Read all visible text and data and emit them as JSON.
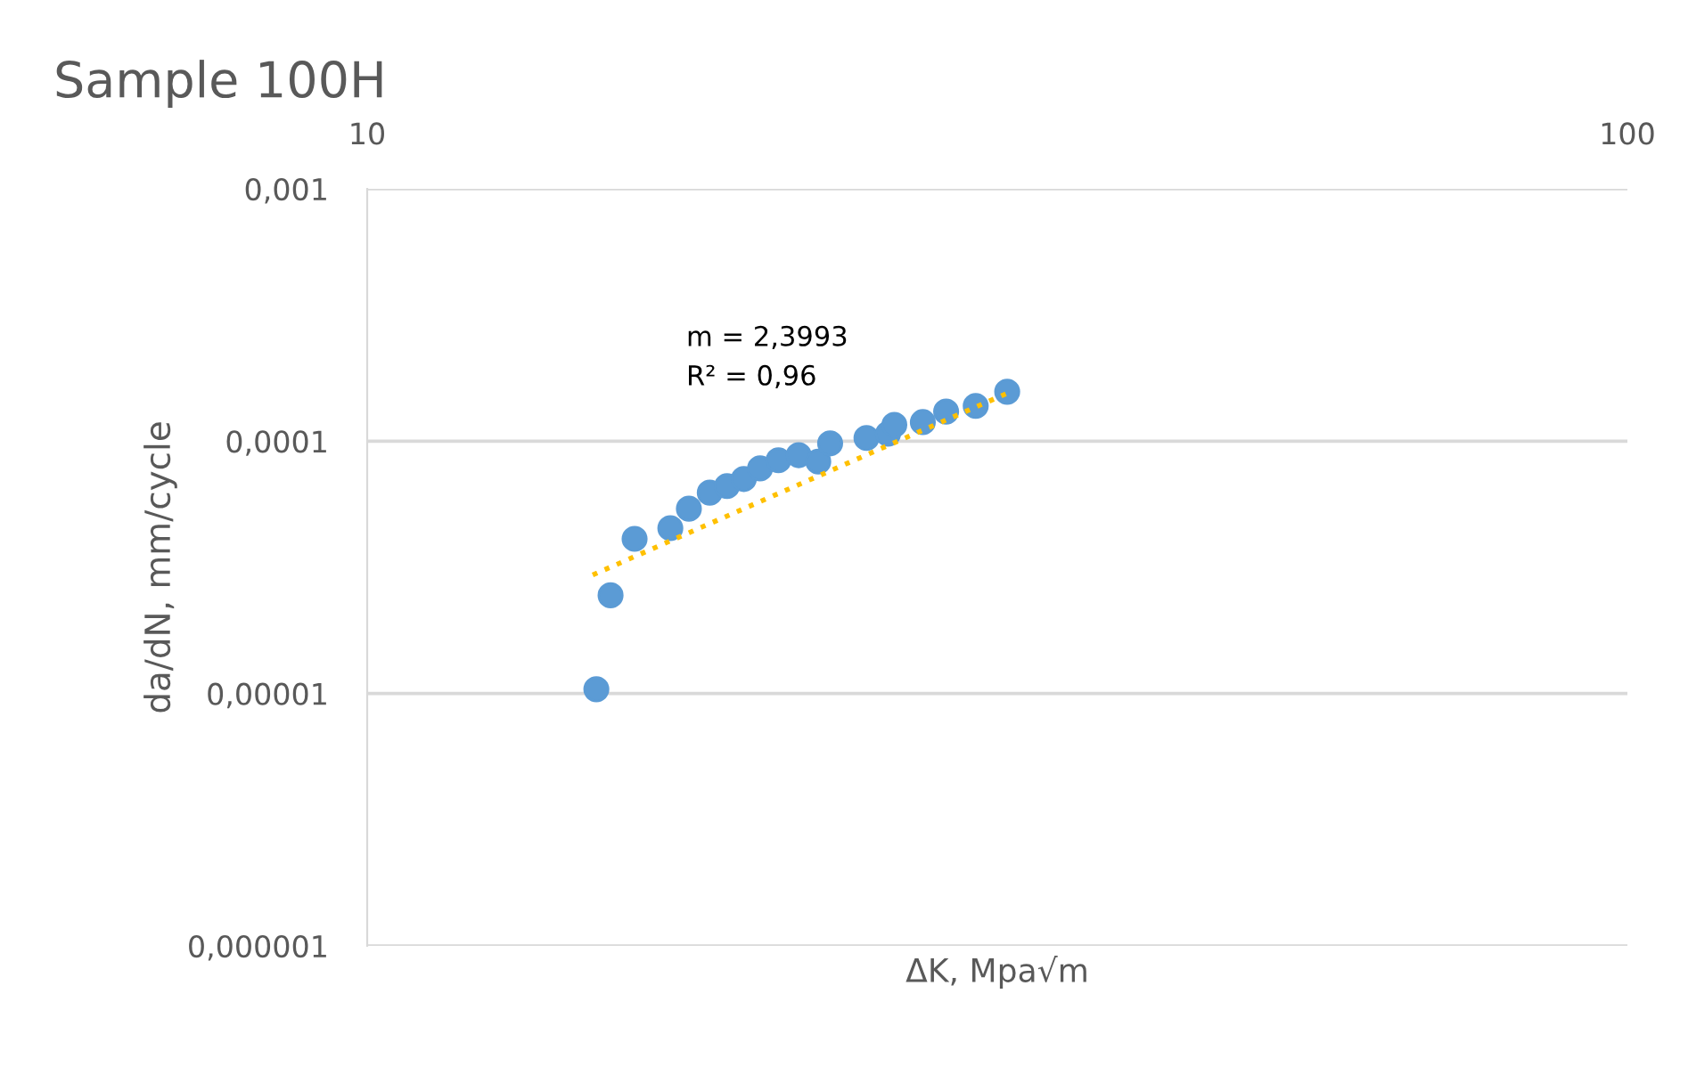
{
  "chart_data": {
    "type": "scatter",
    "title": "Sample 100H",
    "xlabel": "ΔK, Mpa√m",
    "ylabel": "da/dN, mm/cycle",
    "log": "xy",
    "grid": "y",
    "legend": false,
    "tick_labels": "xy",
    "xlim": [
      10,
      100
    ],
    "xticks": [
      10,
      100
    ],
    "ylim": [
      1e-06,
      0.001
    ],
    "yticks": [
      {
        "value": 1e-06,
        "label": "0,000001"
      },
      {
        "value": 1e-05,
        "label": "0,00001"
      },
      {
        "value": 0.0001,
        "label": "0,0001"
      },
      {
        "value": 0.001,
        "label": "0,001"
      }
    ],
    "series": [
      {
        "color": "#5b9bd5",
        "marker": "circle",
        "x": [
          15.2,
          15.6,
          16.3,
          17.4,
          18.0,
          18.7,
          19.3,
          19.9,
          20.5,
          21.2,
          22.0,
          22.8,
          23.3,
          24.9,
          25.9,
          26.2,
          27.6,
          28.8,
          30.4,
          32.2
        ],
        "values": [
          1.04e-05,
          2.45e-05,
          4.1e-05,
          4.52e-05,
          5.4e-05,
          6.25e-05,
          6.64e-05,
          7.08e-05,
          7.8e-05,
          8.4e-05,
          8.8e-05,
          8.3e-05,
          9.8e-05,
          0.000103,
          0.000107,
          0.000116,
          0.000119,
          0.000131,
          0.000138,
          0.000157
        ]
      },
      {
        "type": "line",
        "line_style": "dotted",
        "color": "#ffc000",
        "x": [
          15.1,
          32.4
        ],
        "values": [
          2.95e-05,
          0.000157
        ]
      }
    ],
    "annotations": [
      "m = 2,3993",
      "R² = 0,96"
    ]
  }
}
